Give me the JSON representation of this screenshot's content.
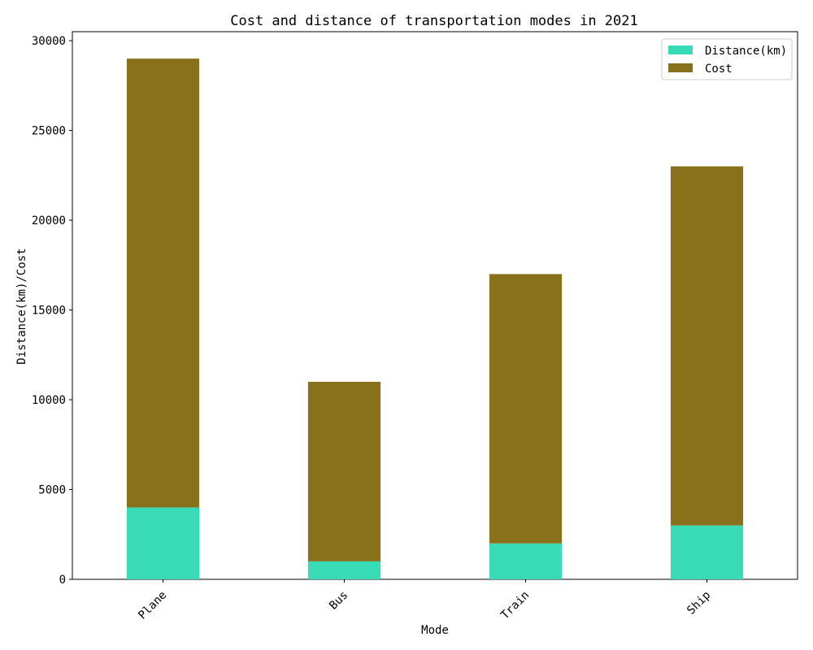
{
  "chart_data": {
    "type": "bar",
    "stacked": true,
    "title": "Cost and distance of transportation modes in 2021",
    "xlabel": "Mode",
    "ylabel": "Distance(km)/Cost",
    "categories": [
      "Plane",
      "Bus",
      "Train",
      "Ship"
    ],
    "series": [
      {
        "name": "Distance(km)",
        "values": [
          4000,
          1000,
          2000,
          3000
        ],
        "color": "#38dbb6"
      },
      {
        "name": "Cost",
        "values": [
          25000,
          10000,
          15000,
          20000
        ],
        "color": "#87721b"
      }
    ],
    "ylim": [
      0,
      30500
    ],
    "yticks": [
      0,
      5000,
      10000,
      15000,
      20000,
      25000,
      30000
    ],
    "grid": false,
    "legend_position": "top-right",
    "x_tick_rotation": 45
  }
}
